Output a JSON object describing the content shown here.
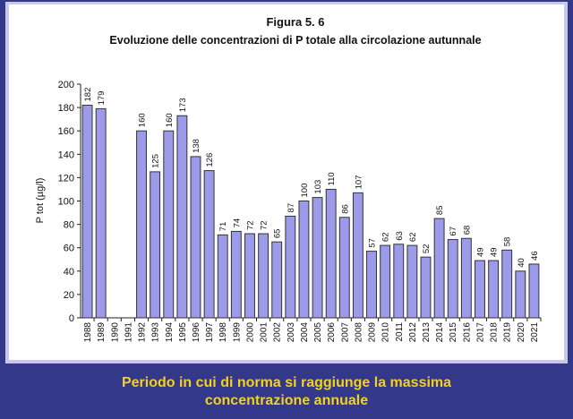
{
  "chart_data": {
    "type": "bar",
    "title": "Figura 5. 6",
    "subtitle": "Evoluzione delle concentrazioni di P totale  alla circolazione autunnale",
    "y_label": "P tot (µg/l)",
    "categories": [
      "1988",
      "1989",
      "1990",
      "1991",
      "1992",
      "1993",
      "1994",
      "1995",
      "1996",
      "1997",
      "1998",
      "1999",
      "2000",
      "2001",
      "2002",
      "2003",
      "2004",
      "2005",
      "2006",
      "2007",
      "2008",
      "2009",
      "2010",
      "2011",
      "2012",
      "2013",
      "2014",
      "2015",
      "2016",
      "2017",
      "2018",
      "2019",
      "2020",
      "2021"
    ],
    "values": [
      182,
      179,
      null,
      null,
      160,
      125,
      160,
      173,
      138,
      126,
      71,
      74,
      72,
      72,
      65,
      87,
      100,
      103,
      110,
      86,
      107,
      57,
      62,
      63,
      62,
      52,
      85,
      67,
      68,
      49,
      49,
      58,
      40,
      46
    ],
    "color": "#9b9bea",
    "ylim": [
      0,
      200
    ],
    "yticks": [
      0,
      20,
      40,
      60,
      80,
      100,
      120,
      140,
      160,
      180,
      200
    ],
    "grid": false
  },
  "caption": [
    "Periodo in cui di norma si raggiunge la massima",
    "concentrazione annuale"
  ]
}
